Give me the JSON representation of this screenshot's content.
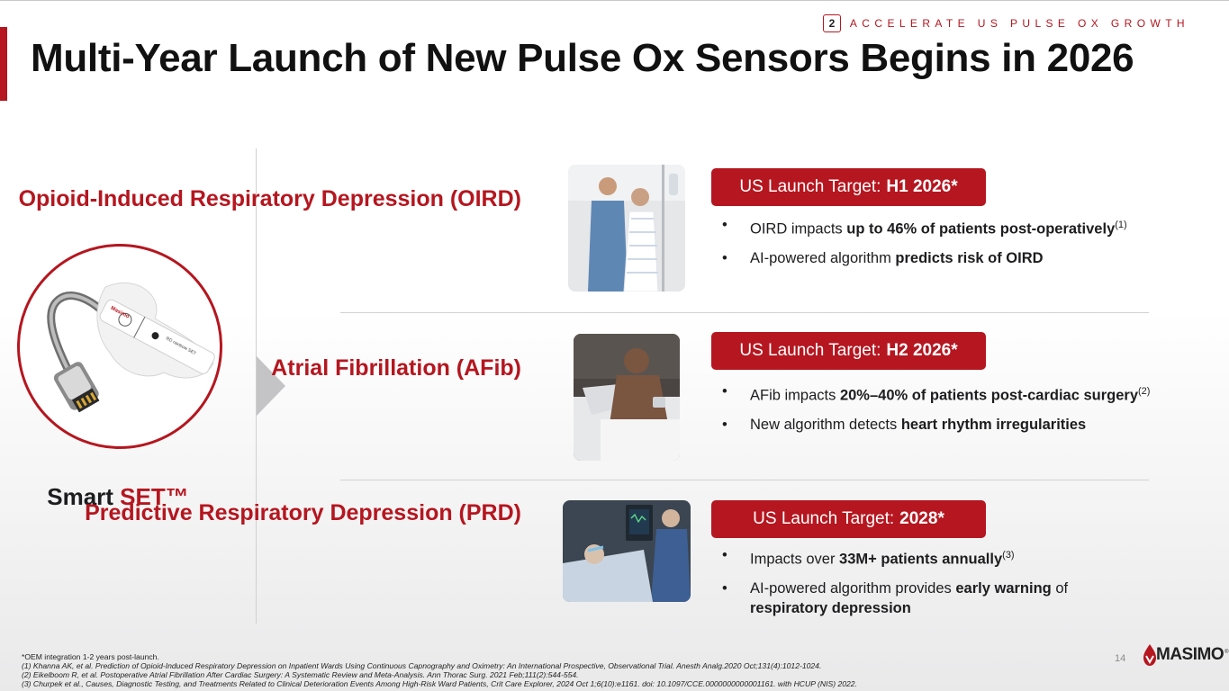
{
  "section": {
    "number": "2",
    "label": "ACCELERATE US PULSE OX GROWTH"
  },
  "title": "Multi-Year Launch of New Pulse Ox Sensors Begins in 2026",
  "product": {
    "label_prefix": "Smart ",
    "label_accent": "SET™",
    "device_brand": "Masimo",
    "device_text": "RD rainbow SET"
  },
  "conditions": [
    {
      "name": "Opioid-Induced Respiratory Depression (OIRD)",
      "target_prefix": "US Launch Target:",
      "target_value": "H1 2026*",
      "bullets": [
        {
          "pre": "OIRD impacts ",
          "bold": "up to 46% of patients post-operatively",
          "sup": "(1)",
          "post": ""
        },
        {
          "pre": "AI-powered algorithm ",
          "bold": "predicts risk of OIRD",
          "sup": "",
          "post": ""
        }
      ]
    },
    {
      "name": "Atrial Fibrillation (AFib)",
      "target_prefix": "US Launch Target:",
      "target_value": "H2 2026*",
      "bullets": [
        {
          "pre": "AFib impacts ",
          "bold": "20%–40% of patients post-cardiac surgery",
          "sup": "(2)",
          "post": ""
        },
        {
          "pre": "New algorithm detects ",
          "bold": "heart rhythm irregularities",
          "sup": "",
          "post": ""
        }
      ]
    },
    {
      "name": "Predictive Respiratory Depression (PRD)",
      "target_prefix": "US Launch Target:",
      "target_value": "2028*",
      "bullets": [
        {
          "pre": "Impacts over ",
          "bold": "33M+ patients annually",
          "sup": "(3)",
          "post": ""
        },
        {
          "pre": "AI-powered algorithm provides ",
          "bold": "early warning",
          "sup": "",
          "post": " of"
        },
        {
          "pre": "",
          "bold": "respiratory depression",
          "sup": "",
          "post": ""
        }
      ]
    }
  ],
  "footnotes": [
    "*OEM integration 1-2 years post-launch.",
    "(1) Khanna AK, et al. Prediction of Opioid-Induced Respiratory Depression on Inpatient Wards Using Continuous Capnography and Oximetry: An International Prospective, Observational Trial. Anesth Analg.2020 Oct;131(4):1012-1024.",
    "(2) Eikelboom R, et al. Postoperative Atrial Fibrillation After Cardiac Surgery: A Systematic Review and Meta-Analysis. Ann Thorac Surg. 2021 Feb;111(2):544-554.",
    "(3) Churpek et al., Causes, Diagnostic Testing, and Treatments Related to Clinical Deterioration Events Among High-Risk Ward Patients, Crit Care Explorer,  2024 Oct 1;6(10):e1161. doi: 10.1097/CCE.0000000000001161. with HCUP (NIS) 2022."
  ],
  "page_number": "14",
  "logo": "MASIMO",
  "colors": {
    "accent": "#b5161f",
    "text": "#1d1d1f",
    "chevron": "#c4c4c6"
  }
}
